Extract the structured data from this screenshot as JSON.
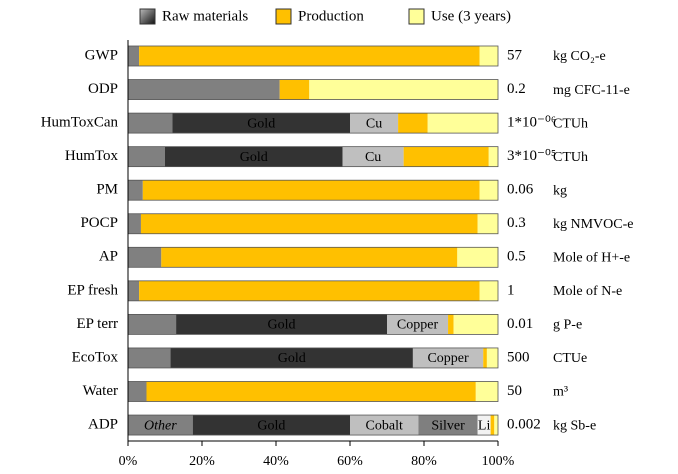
{
  "chart_data": {
    "type": "bar",
    "orientation": "horizontal",
    "stacked": true,
    "legend": [
      {
        "name": "Raw materials",
        "color": "#555555"
      },
      {
        "name": "Production",
        "color": "#ffc000"
      },
      {
        "name": "Use (3 years)",
        "color": "#ffff99"
      }
    ],
    "rows": [
      {
        "name": "GWP",
        "total": 57,
        "unit": "kg CO₂-e",
        "segments": [
          {
            "value": 3,
            "color": "#808080"
          },
          {
            "value": 92,
            "color": "#ffc000"
          },
          {
            "value": 5,
            "color": "#ffff99"
          }
        ]
      },
      {
        "name": "ODP",
        "total": 0.2,
        "unit": "mg CFC-11-e",
        "segments": [
          {
            "value": 41,
            "color": "#808080"
          },
          {
            "value": 8,
            "color": "#ffc000"
          },
          {
            "value": 51,
            "color": "#ffff99"
          }
        ]
      },
      {
        "name": "HumToxCan",
        "total": {
          "value": 1e-06,
          "label": "1*10⁻⁰⁶"
        },
        "unit": "CTUh",
        "segments": [
          {
            "value": 12,
            "color": "#808080"
          },
          {
            "value": 48,
            "color": "#333333",
            "label": "Gold"
          },
          {
            "value": 13,
            "color": "#bfbfbf",
            "label": "Cu"
          },
          {
            "value": 8,
            "color": "#ffc000"
          },
          {
            "value": 19,
            "color": "#ffff99"
          }
        ]
      },
      {
        "name": "HumTox",
        "total": {
          "value": 3e-05,
          "label": "3*10⁻⁰⁵"
        },
        "unit": "CTUh",
        "segments": [
          {
            "value": 10,
            "color": "#808080"
          },
          {
            "value": 48,
            "color": "#333333",
            "label": "Gold"
          },
          {
            "value": 16.5,
            "color": "#bfbfbf",
            "label": "Cu"
          },
          {
            "value": 23,
            "color": "#ffc000"
          },
          {
            "value": 2.5,
            "color": "#ffff99"
          }
        ]
      },
      {
        "name": "PM",
        "total": 0.06,
        "unit": "kg",
        "segments": [
          {
            "value": 4,
            "color": "#808080"
          },
          {
            "value": 91,
            "color": "#ffc000"
          },
          {
            "value": 5,
            "color": "#ffff99"
          }
        ]
      },
      {
        "name": "POCP",
        "total": 0.3,
        "unit": "kg NMVOC-e",
        "segments": [
          {
            "value": 3.5,
            "color": "#808080"
          },
          {
            "value": 91,
            "color": "#ffc000"
          },
          {
            "value": 5.5,
            "color": "#ffff99"
          }
        ]
      },
      {
        "name": "AP",
        "total": 0.5,
        "unit": "Mole of H+-e",
        "segments": [
          {
            "value": 9,
            "color": "#808080"
          },
          {
            "value": 80,
            "color": "#ffc000"
          },
          {
            "value": 11,
            "color": "#ffff99"
          }
        ]
      },
      {
        "name": "EP fresh",
        "total": 1,
        "unit": "Mole of N-e",
        "segments": [
          {
            "value": 3,
            "color": "#808080"
          },
          {
            "value": 92,
            "color": "#ffc000"
          },
          {
            "value": 5,
            "color": "#ffff99"
          }
        ]
      },
      {
        "name": "EP terr",
        "total": 0.01,
        "unit": "g P-e",
        "segments": [
          {
            "value": 13,
            "color": "#808080"
          },
          {
            "value": 57,
            "color": "#333333",
            "label": "Gold"
          },
          {
            "value": 16.5,
            "color": "#bfbfbf",
            "label": "Copper"
          },
          {
            "value": 1.5,
            "color": "#ffc000"
          },
          {
            "value": 12,
            "color": "#ffff99"
          }
        ]
      },
      {
        "name": "EcoTox",
        "total": 500,
        "unit": "CTUe",
        "segments": [
          {
            "value": 11.5,
            "color": "#808080"
          },
          {
            "value": 65.5,
            "color": "#333333",
            "label": "Gold"
          },
          {
            "value": 19,
            "color": "#bfbfbf",
            "label": "Copper"
          },
          {
            "value": 1,
            "color": "#ffc000"
          },
          {
            "value": 3,
            "color": "#ffff99"
          }
        ]
      },
      {
        "name": "Water",
        "total": 50,
        "unit": "m³",
        "segments": [
          {
            "value": 5,
            "color": "#808080"
          },
          {
            "value": 89,
            "color": "#ffc000"
          },
          {
            "value": 6,
            "color": "#ffff99"
          }
        ]
      },
      {
        "name": "ADP",
        "total": 0.002,
        "unit": "kg Sb-e",
        "segments": [
          {
            "value": 17.5,
            "color": "#808080",
            "label": "Other"
          },
          {
            "value": 42.5,
            "color": "#333333",
            "label": "Gold"
          },
          {
            "value": 18.5,
            "color": "#bfbfbf",
            "label": "Cobalt"
          },
          {
            "value": 16,
            "color": "#7f7f7f",
            "label": "Silver"
          },
          {
            "value": 3.5,
            "color": "#f2f2f2",
            "label": "Li"
          },
          {
            "value": 1,
            "color": "#ffc000"
          },
          {
            "value": 1,
            "color": "#ffff99"
          }
        ]
      }
    ],
    "xlim": [
      0,
      100
    ],
    "xticks": [
      {
        "value": 0,
        "label": "0%"
      },
      {
        "value": 20,
        "label": "20%"
      },
      {
        "value": 40,
        "label": "40%"
      },
      {
        "value": 60,
        "label": "60%"
      },
      {
        "value": 80,
        "label": "80%"
      },
      {
        "value": 100,
        "label": "100%"
      }
    ]
  }
}
